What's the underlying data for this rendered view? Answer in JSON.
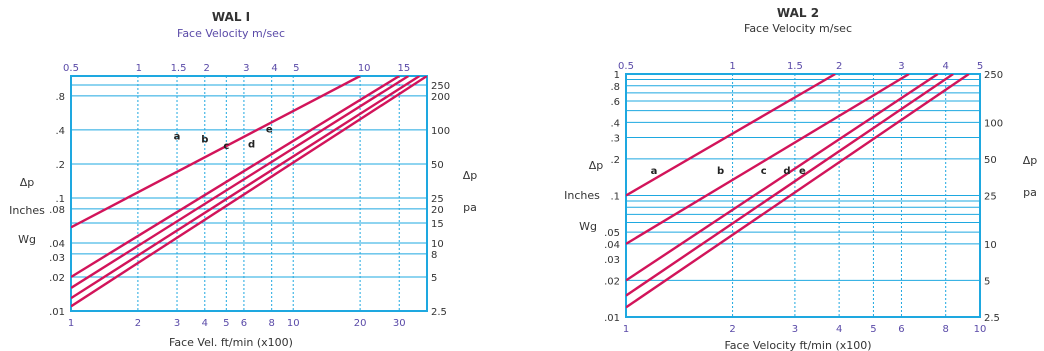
{
  "chart_data": [
    {
      "type": "line",
      "title": "WAL I",
      "subtitle": "Face  Velocity m/sec",
      "xlabel": "Face Vel. ft/min  (x100)",
      "left_label_lines": [
        "Δp",
        "Inches",
        "Wg"
      ],
      "right_label_lines": [
        "Δp",
        "pa"
      ],
      "x_scale": "log",
      "y_scale": "log",
      "xlim": [
        1,
        40
      ],
      "ylim": [
        0.01,
        1.2
      ],
      "x_ticks": [
        "1",
        "2",
        "3",
        "4",
        "5",
        "6",
        "8",
        "10",
        "20",
        "30"
      ],
      "x_tick_values": [
        1,
        2,
        3,
        4,
        5,
        6,
        8,
        10,
        20,
        30
      ],
      "top_ticks": [
        "0.5",
        "1",
        "1.5",
        "2",
        "3",
        "4",
        "5",
        "10",
        "15"
      ],
      "top_tick_values": [
        0.5,
        1,
        1.5,
        2,
        3,
        4,
        5,
        10,
        15
      ],
      "y_ticks": [
        ".01",
        ".02",
        ".03",
        ".04",
        ".08",
        ".1",
        ".2",
        ".4",
        ".8"
      ],
      "y_tick_values": [
        0.01,
        0.02,
        0.03,
        0.04,
        0.08,
        0.1,
        0.2,
        0.4,
        0.8
      ],
      "right_ticks": [
        "2.5",
        "5",
        "8",
        "10",
        "15",
        "20",
        "25",
        "50",
        "100",
        "200",
        "250"
      ],
      "right_tick_values": [
        2.5,
        5,
        8,
        10,
        15,
        20,
        25,
        50,
        100,
        200,
        250
      ],
      "grid": true,
      "series": [
        {
          "name": "a",
          "x": [
            1,
            20
          ],
          "y": [
            0.055,
            1.2
          ],
          "label_at": [
            3,
            0.33
          ]
        },
        {
          "name": "b",
          "x": [
            1,
            30
          ],
          "y": [
            0.02,
            1.2
          ],
          "label_at": [
            4,
            0.31
          ]
        },
        {
          "name": "c",
          "x": [
            1,
            33
          ],
          "y": [
            0.016,
            1.2
          ],
          "label_at": [
            5,
            0.27
          ]
        },
        {
          "name": "d",
          "x": [
            1,
            37
          ],
          "y": [
            0.013,
            1.2
          ],
          "label_at": [
            6.5,
            0.28
          ]
        },
        {
          "name": "e",
          "x": [
            1,
            40
          ],
          "y": [
            0.011,
            1.2
          ],
          "label_at": [
            7.8,
            0.38
          ]
        }
      ]
    },
    {
      "type": "line",
      "title": "WAL 2",
      "subtitle": "Face Velocity m/sec",
      "xlabel": "Face Velocity ft/min  (x100)",
      "left_label_lines": [
        "Δp",
        "Inches",
        "Wg"
      ],
      "right_label_lines": [
        "Δp",
        "pa"
      ],
      "x_scale": "log",
      "y_scale": "log",
      "xlim": [
        1,
        10
      ],
      "ylim": [
        0.01,
        1
      ],
      "x_ticks": [
        "1",
        "2",
        "3",
        "4",
        "5",
        "6",
        "8",
        "10"
      ],
      "x_tick_values": [
        1,
        2,
        3,
        4,
        5,
        6,
        8,
        10
      ],
      "top_ticks": [
        "0.5",
        "1",
        "1.5",
        "2",
        "3",
        "4",
        "5"
      ],
      "top_tick_values": [
        0.5,
        1,
        1.5,
        2,
        3,
        4,
        5
      ],
      "y_ticks": [
        ".01",
        ".02",
        ".03",
        ".04",
        ".05",
        ".1",
        ".2",
        ".3",
        ".4",
        ".6",
        ".8",
        "1"
      ],
      "y_tick_values": [
        0.01,
        0.02,
        0.03,
        0.04,
        0.05,
        0.1,
        0.2,
        0.3,
        0.4,
        0.6,
        0.8,
        1
      ],
      "right_ticks": [
        "2.5",
        "5",
        "10",
        "25",
        "50",
        "100",
        "250"
      ],
      "right_tick_values": [
        2.5,
        5,
        10,
        25,
        50,
        100,
        250
      ],
      "grid": true,
      "series": [
        {
          "name": "a",
          "x": [
            1,
            3.9
          ],
          "y": [
            0.1,
            1
          ],
          "label_at": [
            1.2,
            0.15
          ]
        },
        {
          "name": "b",
          "x": [
            1,
            6.3
          ],
          "y": [
            0.04,
            1
          ],
          "label_at": [
            1.85,
            0.15
          ]
        },
        {
          "name": "c",
          "x": [
            1,
            7.6
          ],
          "y": [
            0.02,
            1
          ],
          "label_at": [
            2.45,
            0.15
          ]
        },
        {
          "name": "d",
          "x": [
            1,
            8.4
          ],
          "y": [
            0.015,
            1
          ],
          "label_at": [
            2.85,
            0.15
          ]
        },
        {
          "name": "e",
          "x": [
            1,
            9.3
          ],
          "y": [
            0.012,
            1
          ],
          "label_at": [
            3.15,
            0.15
          ]
        }
      ]
    }
  ],
  "colors": {
    "frame": "#1ea8e0",
    "grid": "#1ea8e0",
    "lines": "#d2145a",
    "top_labels": "#5a4aa8",
    "text": "#333333"
  }
}
